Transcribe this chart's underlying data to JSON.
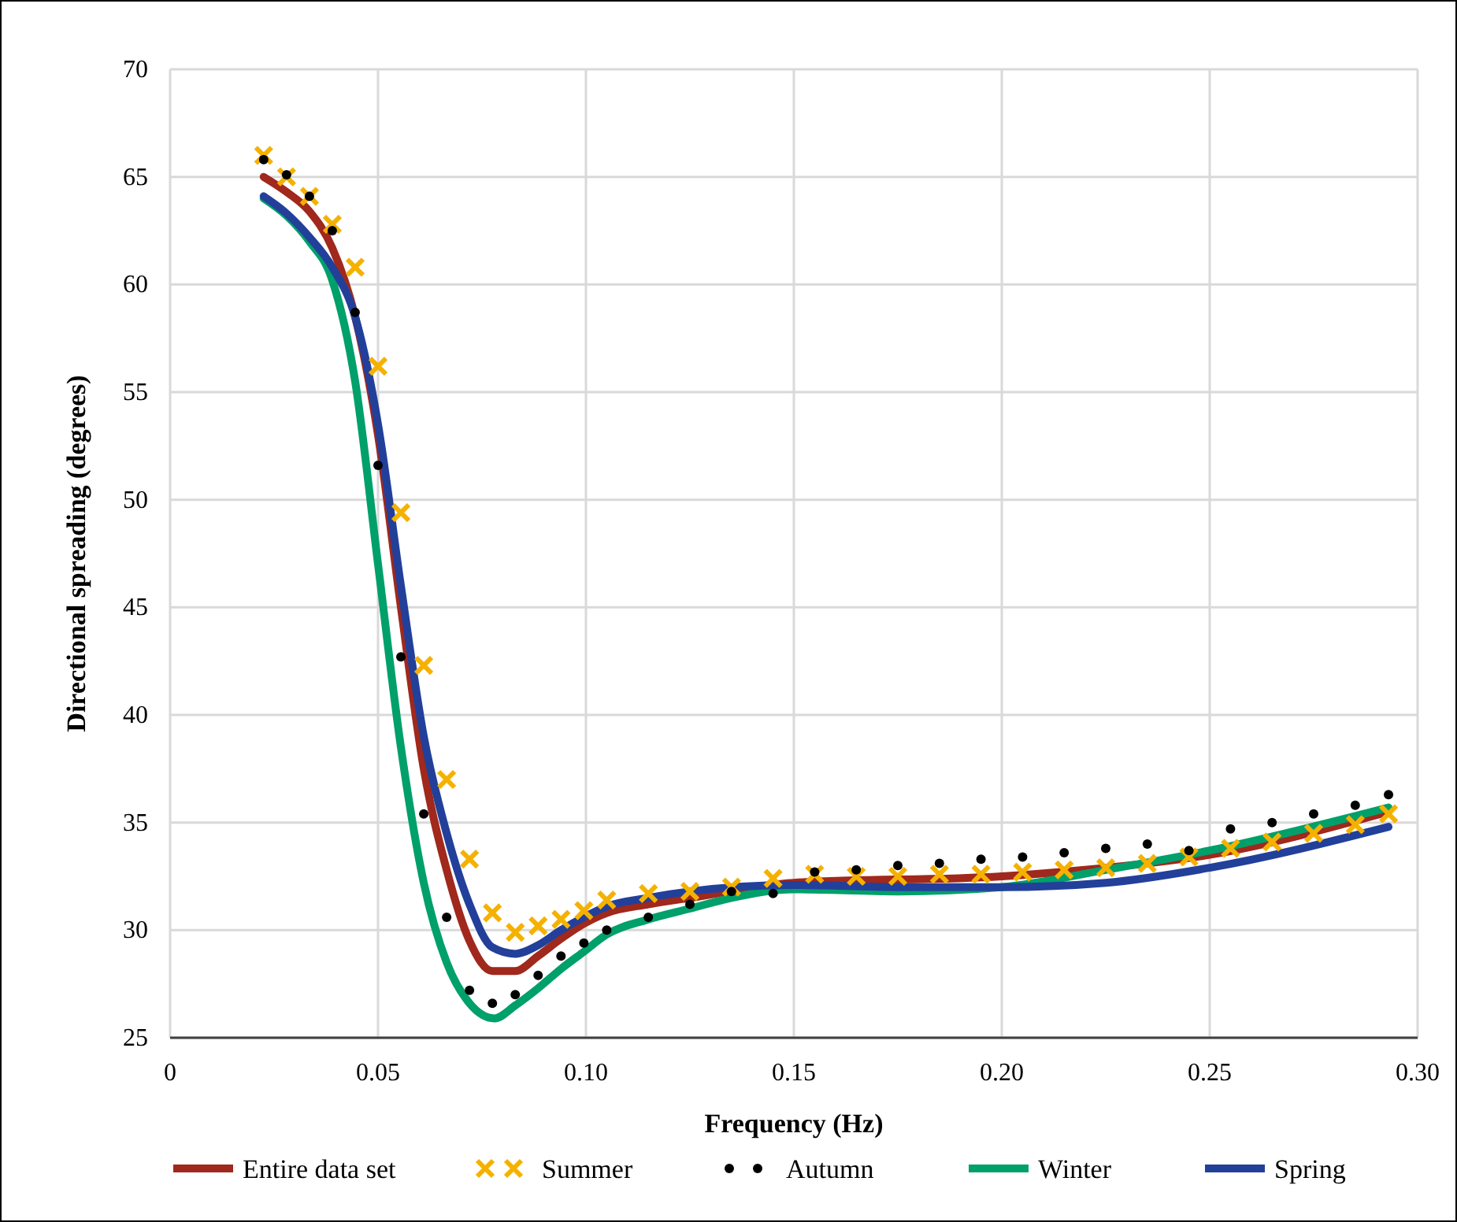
{
  "chart_data": {
    "type": "line",
    "xlabel": "Frequency (Hz)",
    "ylabel": "Directional spreading (degrees)",
    "xlim": [
      0,
      0.3
    ],
    "xticks": [
      0,
      0.05,
      {
        "value": 0.1,
        "label": "0.10"
      },
      0.15,
      {
        "value": 0.2,
        "label": "0.20"
      },
      0.25,
      {
        "value": 0.3,
        "label": "0.30"
      }
    ],
    "ylim": [
      25,
      70
    ],
    "yticks": [
      25,
      30,
      35,
      40,
      45,
      50,
      55,
      60,
      65,
      70
    ],
    "grid": true,
    "legend": "bottom",
    "series": [
      {
        "name": "Entire data set",
        "color": "#a0281c",
        "x": [
          0.0225,
          0.028,
          0.0335,
          0.039,
          0.0445,
          0.05,
          0.0555,
          0.061,
          0.0665,
          0.072,
          0.0775,
          0.083,
          0.0885,
          0.094,
          0.0995,
          0.105,
          0.115,
          0.125,
          0.15,
          0.2,
          0.22,
          0.25,
          0.293
        ],
        "values": [
          65.0,
          64.3,
          63.4,
          61.7,
          58.5,
          53,
          45,
          37.5,
          32.8,
          29.5,
          28.1,
          28.1,
          28.8,
          29.6,
          30.3,
          30.8,
          31.2,
          31.5,
          32.2,
          32.5,
          32.8,
          33.5,
          35.5
        ]
      },
      {
        "name": "Summer",
        "type": "scatter",
        "marker": "cross",
        "color": "#f5b100",
        "x": [
          0.0225,
          0.028,
          0.0335,
          0.039,
          0.0445,
          0.05,
          0.0555,
          0.061,
          0.0665,
          0.072,
          0.0775,
          0.083,
          0.0885,
          0.094,
          0.0995,
          0.105,
          0.115,
          0.125,
          0.135,
          0.145,
          0.155,
          0.165,
          0.175,
          0.185,
          0.195,
          0.205,
          0.215,
          0.225,
          0.235,
          0.245,
          0.255,
          0.265,
          0.275,
          0.285,
          0.293
        ],
        "values": [
          66.0,
          65.0,
          64.1,
          62.8,
          60.8,
          56.2,
          49.4,
          42.3,
          37.0,
          33.3,
          30.8,
          29.9,
          30.2,
          30.5,
          30.9,
          31.4,
          31.7,
          31.8,
          32.0,
          32.4,
          32.6,
          32.5,
          32.5,
          32.6,
          32.6,
          32.7,
          32.8,
          32.9,
          33.1,
          33.4,
          33.8,
          34.1,
          34.5,
          34.9,
          35.4
        ]
      },
      {
        "name": "Autumn",
        "type": "scatter",
        "marker": "circle",
        "color": "#000000",
        "x": [
          0.0225,
          0.028,
          0.0335,
          0.039,
          0.0445,
          0.05,
          0.0555,
          0.061,
          0.0665,
          0.072,
          0.0775,
          0.083,
          0.0885,
          0.094,
          0.0995,
          0.105,
          0.115,
          0.125,
          0.135,
          0.145,
          0.155,
          0.165,
          0.175,
          0.185,
          0.195,
          0.205,
          0.215,
          0.225,
          0.235,
          0.245,
          0.255,
          0.265,
          0.275,
          0.285,
          0.293
        ],
        "values": [
          65.8,
          65.1,
          64.1,
          62.5,
          58.7,
          51.6,
          42.7,
          35.4,
          30.6,
          27.2,
          26.6,
          27.0,
          27.9,
          28.8,
          29.4,
          30.0,
          30.6,
          31.2,
          31.8,
          31.7,
          32.7,
          32.8,
          33.0,
          33.1,
          33.3,
          33.4,
          33.6,
          33.8,
          34.0,
          33.7,
          34.7,
          35.0,
          35.4,
          35.8,
          36.3
        ]
      },
      {
        "name": "Winter",
        "color": "#00a06a",
        "x": [
          0.0225,
          0.028,
          0.0335,
          0.039,
          0.0445,
          0.05,
          0.0555,
          0.061,
          0.0665,
          0.072,
          0.078,
          0.083,
          0.0885,
          0.094,
          0.0995,
          0.105,
          0.115,
          0.125,
          0.135,
          0.15,
          0.175,
          0.2,
          0.225,
          0.25,
          0.293
        ],
        "values": [
          64.0,
          63.2,
          62.0,
          60.2,
          55.5,
          47,
          38.5,
          32.2,
          28.5,
          26.6,
          25.9,
          26.5,
          27.3,
          28.2,
          29.0,
          29.8,
          30.5,
          31.0,
          31.5,
          31.9,
          31.8,
          32.0,
          32.8,
          33.7,
          35.7
        ]
      },
      {
        "name": "Spring",
        "color": "#22409a",
        "x": [
          0.0225,
          0.028,
          0.0335,
          0.039,
          0.0445,
          0.05,
          0.0555,
          0.061,
          0.0665,
          0.072,
          0.0775,
          0.083,
          0.0885,
          0.094,
          0.0995,
          0.105,
          0.115,
          0.125,
          0.15,
          0.175,
          0.2,
          0.225,
          0.25,
          0.293
        ],
        "values": [
          64.1,
          63.3,
          62.2,
          60.8,
          58.5,
          53.5,
          46,
          39,
          34.5,
          31.2,
          29.2,
          28.9,
          29.3,
          30.0,
          30.6,
          31.1,
          31.5,
          31.8,
          32.1,
          32.0,
          32.0,
          32.2,
          32.9,
          34.8
        ]
      }
    ]
  }
}
